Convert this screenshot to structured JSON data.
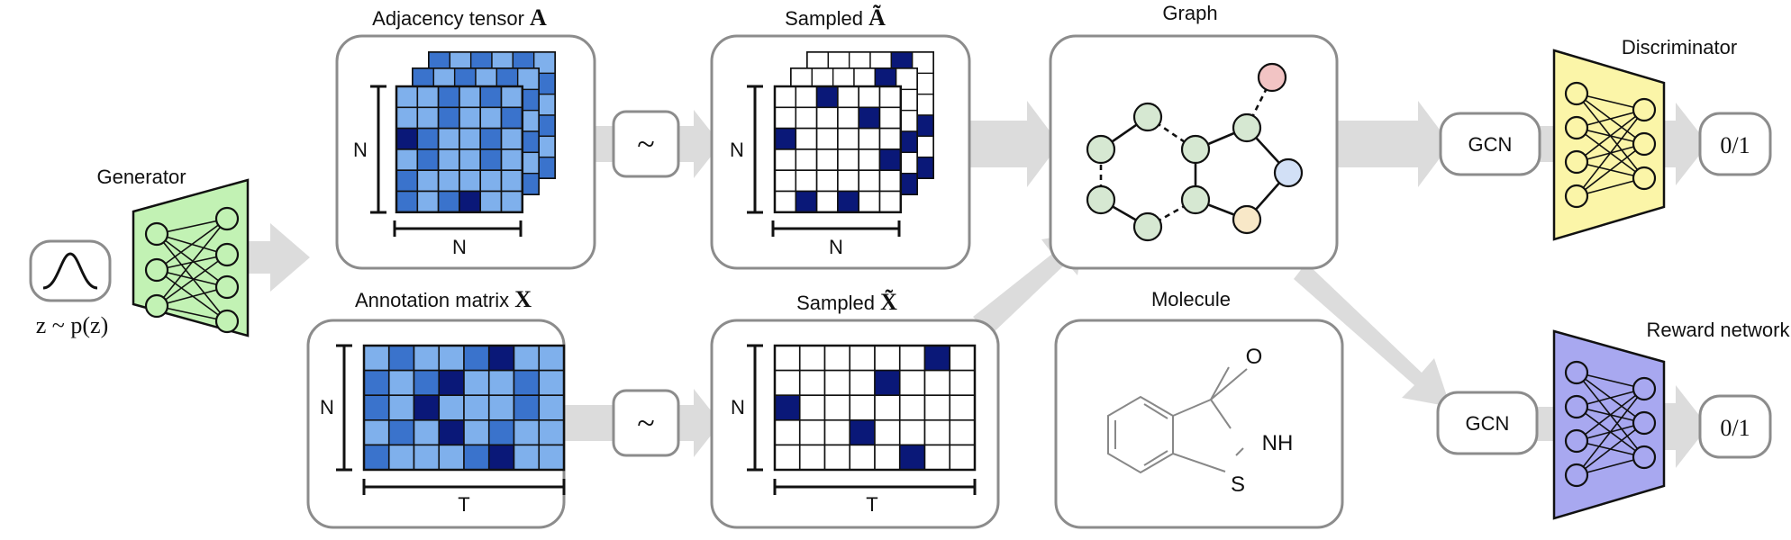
{
  "labels": {
    "generator": "Generator",
    "latent": "z ~ p(z)",
    "adjacency_title": "Adjacency tensor",
    "adjacency_symbol": "A",
    "annotation_title": "Annotation matrix",
    "annotation_symbol": "X",
    "sampled_a_title": "Sampled",
    "sampled_a_symbol": "Ã",
    "sampled_x_title": "Sampled",
    "sampled_x_symbol": "X̃",
    "graph_title": "Graph",
    "molecule_title": "Molecule",
    "discriminator": "Discriminator",
    "reward_network": "Reward network",
    "gcn_top": "GCN",
    "gcn_bottom": "GCN",
    "output_top": "0/1",
    "output_bottom": "0/1",
    "tilde_top": "~",
    "tilde_bottom": "~",
    "dim_n_adj_v": "N",
    "dim_n_adj_h": "N",
    "dim_n_ann_v": "N",
    "dim_t_ann_h": "T",
    "dim_n_samp_a_v": "N",
    "dim_n_samp_a_h": "N",
    "dim_n_samp_x_v": "N",
    "dim_t_samp_x_h": "T",
    "mol_o": "O",
    "mol_nh": "NH",
    "mol_s": "S"
  },
  "colors": {
    "arrow": "#dcdcdc",
    "box_stroke": "#8c8c8c",
    "cell_light": "#7fb0ec",
    "cell_mid": "#3a73cc",
    "cell_dark": "#0a1878",
    "cell_white": "#ffffff",
    "generator_fill": "#c2f2b4",
    "discriminator_fill": "#fbf5a8",
    "reward_fill": "#a8a8f0",
    "node_green": "#d6e8d2",
    "node_red": "#f2c4c4",
    "node_blue": "#d2e0f6",
    "node_yellow": "#f8e8c8"
  },
  "grids": {
    "adjacency": [
      [
        0,
        0,
        1,
        0,
        1,
        0
      ],
      [
        0,
        0,
        1,
        0,
        0,
        1
      ],
      [
        2,
        1,
        0,
        0,
        1,
        0
      ],
      [
        0,
        1,
        0,
        0,
        1,
        0
      ],
      [
        1,
        0,
        0,
        0,
        0,
        0
      ],
      [
        1,
        0,
        1,
        2,
        0,
        0
      ]
    ],
    "annotation": [
      [
        0,
        1,
        0,
        0,
        1,
        2,
        0,
        0
      ],
      [
        1,
        0,
        1,
        2,
        0,
        0,
        1,
        0
      ],
      [
        1,
        0,
        2,
        0,
        0,
        0,
        1,
        0
      ],
      [
        0,
        1,
        0,
        2,
        0,
        1,
        0,
        0
      ],
      [
        1,
        0,
        0,
        0,
        1,
        2,
        0,
        0
      ]
    ],
    "sampled_a": [
      [
        0,
        0,
        3,
        0,
        0,
        0
      ],
      [
        0,
        0,
        0,
        0,
        3,
        0
      ],
      [
        3,
        0,
        0,
        0,
        0,
        0
      ],
      [
        0,
        0,
        0,
        0,
        0,
        3
      ],
      [
        0,
        0,
        0,
        0,
        0,
        0
      ],
      [
        0,
        3,
        0,
        3,
        0,
        0
      ]
    ],
    "sampled_x": [
      [
        0,
        0,
        0,
        0,
        0,
        0,
        3,
        0
      ],
      [
        0,
        0,
        0,
        0,
        3,
        0,
        0,
        0
      ],
      [
        3,
        0,
        0,
        0,
        0,
        0,
        0,
        0
      ],
      [
        0,
        0,
        0,
        3,
        0,
        0,
        0,
        0
      ],
      [
        0,
        0,
        0,
        0,
        0,
        3,
        0,
        0
      ]
    ]
  }
}
